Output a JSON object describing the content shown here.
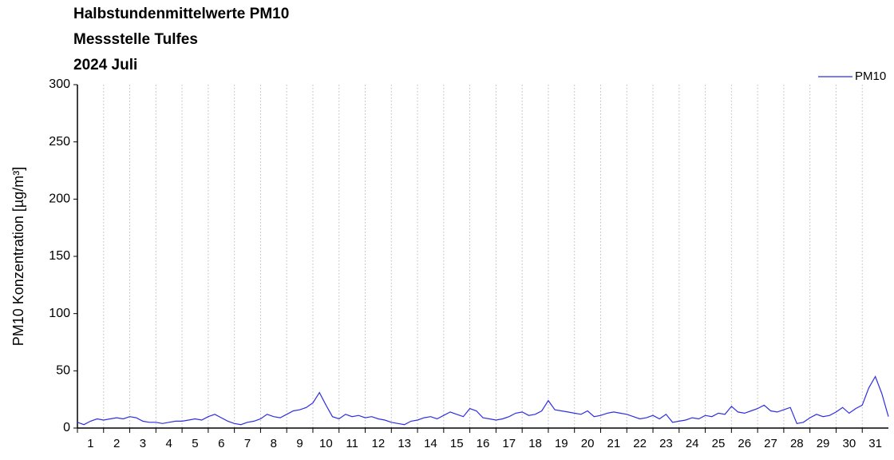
{
  "chart_data": {
    "type": "line",
    "title": "Halbstundenmittelwerte PM10",
    "subtitle": "Messstelle Tulfes",
    "period": "2024 Juli",
    "ylabel": "PM10 Konzentration [µg/m³]",
    "ylim": [
      0,
      300
    ],
    "yticks": [
      0,
      50,
      100,
      150,
      200,
      250,
      300
    ],
    "xlim": [
      1,
      32
    ],
    "xticks": [
      1,
      2,
      3,
      4,
      5,
      6,
      7,
      8,
      9,
      10,
      11,
      12,
      13,
      14,
      15,
      16,
      17,
      18,
      19,
      20,
      21,
      22,
      23,
      24,
      25,
      26,
      27,
      28,
      29,
      30,
      31
    ],
    "grid": true,
    "legend": "upper right",
    "series": [
      {
        "name": "PM10",
        "color": "#2f2fe0",
        "x": [
          1,
          1.25,
          1.5,
          1.75,
          2,
          2.25,
          2.5,
          2.75,
          3,
          3.25,
          3.5,
          3.75,
          4,
          4.25,
          4.5,
          4.75,
          5,
          5.25,
          5.5,
          5.75,
          6,
          6.25,
          6.5,
          6.75,
          7,
          7.25,
          7.5,
          7.75,
          8,
          8.25,
          8.5,
          8.75,
          9,
          9.25,
          9.5,
          9.75,
          10,
          10.25,
          10.5,
          10.75,
          11,
          11.25,
          11.5,
          11.75,
          12,
          12.25,
          12.5,
          12.75,
          13,
          13.25,
          13.5,
          13.75,
          14,
          14.25,
          14.5,
          14.75,
          15,
          15.25,
          15.5,
          15.75,
          16,
          16.25,
          16.5,
          16.75,
          17,
          17.25,
          17.5,
          17.75,
          18,
          18.25,
          18.5,
          18.75,
          19,
          19.25,
          19.5,
          19.75,
          20,
          20.25,
          20.5,
          20.75,
          21,
          21.25,
          21.5,
          21.75,
          22,
          22.25,
          22.5,
          22.75,
          23,
          23.25,
          23.5,
          23.75,
          24,
          24.25,
          24.5,
          24.75,
          25,
          25.25,
          25.5,
          25.75,
          26,
          26.25,
          26.5,
          26.75,
          27,
          27.25,
          27.5,
          27.75,
          28,
          28.25,
          28.5,
          28.75,
          29,
          29.25,
          29.5,
          29.75,
          30,
          30.25,
          30.5,
          30.75,
          31,
          31.25,
          31.5,
          31.75,
          32
        ],
        "values": [
          5,
          3,
          6,
          8,
          7,
          8,
          9,
          8,
          10,
          9,
          6,
          5,
          5,
          4,
          5,
          6,
          6,
          7,
          8,
          7,
          10,
          12,
          9,
          6,
          4,
          3,
          5,
          6,
          8,
          12,
          10,
          9,
          12,
          15,
          16,
          18,
          22,
          31,
          20,
          10,
          8,
          12,
          10,
          11,
          9,
          10,
          8,
          7,
          5,
          4,
          3,
          6,
          7,
          9,
          10,
          8,
          11,
          14,
          12,
          10,
          17,
          15,
          9,
          8,
          7,
          8,
          10,
          13,
          14,
          11,
          12,
          15,
          24,
          16,
          15,
          14,
          13,
          12,
          15,
          10,
          11,
          13,
          14,
          13,
          12,
          10,
          8,
          9,
          11,
          8,
          12,
          5,
          6,
          7,
          9,
          8,
          11,
          10,
          13,
          12,
          19,
          14,
          13,
          15,
          17,
          20,
          15,
          14,
          16,
          18,
          4,
          5,
          9,
          12,
          10,
          11,
          14,
          18,
          13,
          17,
          20,
          35,
          45,
          30,
          10
        ]
      }
    ]
  }
}
